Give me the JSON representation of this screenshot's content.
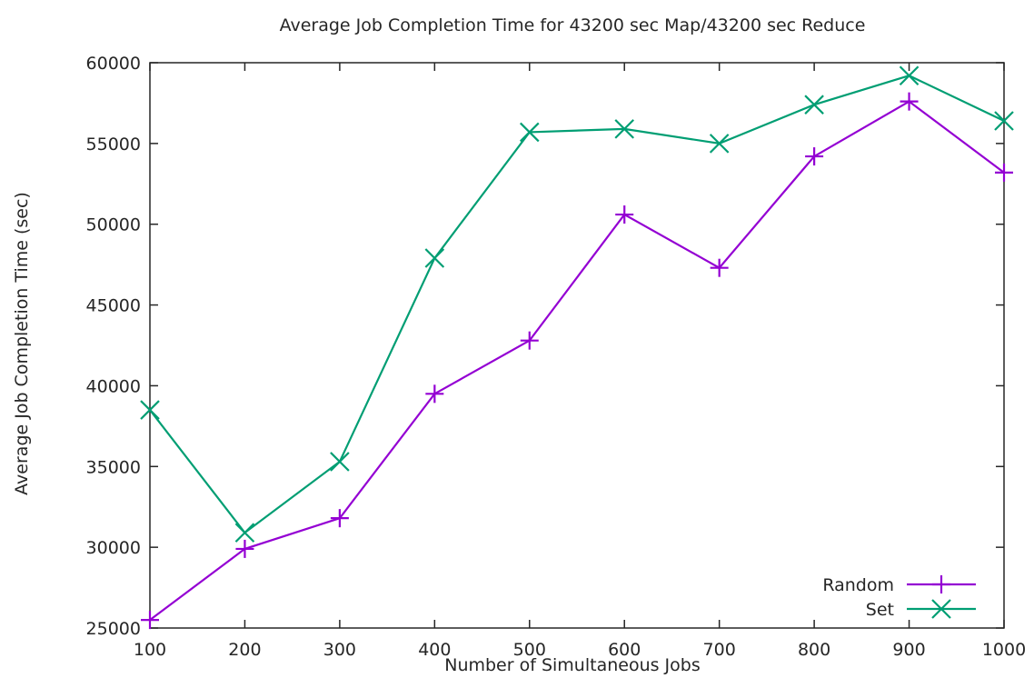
{
  "chart_data": {
    "type": "line",
    "title": "Average Job Completion Time for 43200 sec Map/43200 sec Reduce",
    "xlabel": "Number of Simultaneous Jobs",
    "ylabel": "Average Job Completion Time (sec)",
    "x": [
      100,
      200,
      300,
      400,
      500,
      600,
      700,
      800,
      900,
      1000
    ],
    "xlim": [
      100,
      1000
    ],
    "ylim": [
      25000,
      60000
    ],
    "xticks": [
      100,
      200,
      300,
      400,
      500,
      600,
      700,
      800,
      900,
      1000
    ],
    "yticks": [
      25000,
      30000,
      35000,
      40000,
      45000,
      50000,
      55000,
      60000
    ],
    "grid": false,
    "legend_position": "bottom-right",
    "series": [
      {
        "name": "Random",
        "marker": "plus",
        "color": "#9400d3",
        "values": [
          25500,
          29900,
          31800,
          39500,
          42800,
          50600,
          47300,
          54200,
          57600,
          53200
        ]
      },
      {
        "name": "Set",
        "marker": "cross",
        "color": "#009e73",
        "values": [
          38500,
          30900,
          35300,
          47900,
          55700,
          55900,
          55000,
          57400,
          59200,
          56400
        ]
      }
    ]
  }
}
